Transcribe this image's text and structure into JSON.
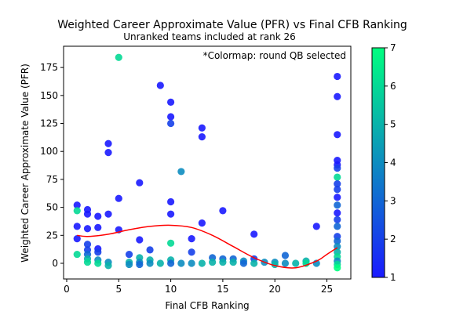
{
  "chart_data": {
    "type": "scatter",
    "title": "Weighted Career Approximate Value (PFR) vs Final CFB Ranking",
    "subtitle": "Unranked teams included at rank 26",
    "annotation": "*Colormap: round QB selected",
    "xlabel": "Final CFB Ranking",
    "ylabel": "Weighted Career Approximate Value (PFR)",
    "xlim": [
      -0.3,
      27.3
    ],
    "ylim": [
      -14,
      194
    ],
    "xticks": [
      0,
      5,
      10,
      15,
      20,
      25
    ],
    "yticks": [
      0,
      25,
      50,
      75,
      100,
      125,
      150,
      175
    ],
    "grid": false,
    "colormap": {
      "name": "winter",
      "range": [
        1,
        7
      ],
      "ticks": [
        1,
        2,
        3,
        4,
        5,
        6,
        7
      ],
      "low_color": "#1a1aff",
      "high_color": "#00ff80"
    },
    "points": [
      {
        "x": 1,
        "y": 52,
        "c": 1
      },
      {
        "x": 1,
        "y": 47,
        "c": 6
      },
      {
        "x": 1,
        "y": 33,
        "c": 1
      },
      {
        "x": 1,
        "y": 22,
        "c": 1
      },
      {
        "x": 1,
        "y": 8,
        "c": 6
      },
      {
        "x": 2,
        "y": 48,
        "c": 1
      },
      {
        "x": 2,
        "y": 44,
        "c": 1
      },
      {
        "x": 2,
        "y": 31,
        "c": 1
      },
      {
        "x": 2,
        "y": 17,
        "c": 2
      },
      {
        "x": 2,
        "y": 12,
        "c": 2
      },
      {
        "x": 2,
        "y": 8,
        "c": 3
      },
      {
        "x": 2,
        "y": 4,
        "c": 5
      },
      {
        "x": 2,
        "y": 1,
        "c": 6
      },
      {
        "x": 3,
        "y": 42,
        "c": 1
      },
      {
        "x": 3,
        "y": 32,
        "c": 1
      },
      {
        "x": 3,
        "y": 13,
        "c": 1
      },
      {
        "x": 3,
        "y": 10,
        "c": 2
      },
      {
        "x": 3,
        "y": 3,
        "c": 4
      },
      {
        "x": 3,
        "y": 0,
        "c": 6
      },
      {
        "x": 4,
        "y": 107,
        "c": 1
      },
      {
        "x": 4,
        "y": 99,
        "c": 1
      },
      {
        "x": 4,
        "y": 44,
        "c": 1
      },
      {
        "x": 4,
        "y": 1,
        "c": 4
      },
      {
        "x": 4,
        "y": -2,
        "c": 5
      },
      {
        "x": 5,
        "y": 184,
        "c": 6
      },
      {
        "x": 5,
        "y": 58,
        "c": 1
      },
      {
        "x": 5,
        "y": 30,
        "c": 1
      },
      {
        "x": 6,
        "y": 8,
        "c": 2
      },
      {
        "x": 6,
        "y": 1,
        "c": 5
      },
      {
        "x": 6,
        "y": -1,
        "c": 4
      },
      {
        "x": 7,
        "y": 72,
        "c": 1
      },
      {
        "x": 7,
        "y": 21,
        "c": 1
      },
      {
        "x": 7,
        "y": 5,
        "c": 5
      },
      {
        "x": 7,
        "y": 1,
        "c": 4
      },
      {
        "x": 7,
        "y": -1,
        "c": 3
      },
      {
        "x": 8,
        "y": 12,
        "c": 2
      },
      {
        "x": 8,
        "y": 3,
        "c": 5
      },
      {
        "x": 8,
        "y": 0,
        "c": 4
      },
      {
        "x": 9,
        "y": 159,
        "c": 1
      },
      {
        "x": 9,
        "y": 0,
        "c": 5
      },
      {
        "x": 10,
        "y": 144,
        "c": 1
      },
      {
        "x": 10,
        "y": 131,
        "c": 1
      },
      {
        "x": 10,
        "y": 125,
        "c": 2
      },
      {
        "x": 10,
        "y": 55,
        "c": 1
      },
      {
        "x": 10,
        "y": 44,
        "c": 1
      },
      {
        "x": 10,
        "y": 18,
        "c": 6
      },
      {
        "x": 10,
        "y": 3,
        "c": 5
      },
      {
        "x": 10,
        "y": 0,
        "c": 3
      },
      {
        "x": 11,
        "y": 82,
        "c": 4
      },
      {
        "x": 11,
        "y": 0,
        "c": 4
      },
      {
        "x": 12,
        "y": 22,
        "c": 1
      },
      {
        "x": 12,
        "y": 10,
        "c": 2
      },
      {
        "x": 12,
        "y": 0,
        "c": 4
      },
      {
        "x": 13,
        "y": 121,
        "c": 1
      },
      {
        "x": 13,
        "y": 113,
        "c": 1
      },
      {
        "x": 13,
        "y": 36,
        "c": 1
      },
      {
        "x": 13,
        "y": 0,
        "c": 5
      },
      {
        "x": 14,
        "y": 5,
        "c": 3
      },
      {
        "x": 14,
        "y": 1,
        "c": 5
      },
      {
        "x": 15,
        "y": 47,
        "c": 1
      },
      {
        "x": 15,
        "y": 4,
        "c": 3
      },
      {
        "x": 15,
        "y": 1,
        "c": 5
      },
      {
        "x": 16,
        "y": 4,
        "c": 3
      },
      {
        "x": 16,
        "y": 1,
        "c": 5
      },
      {
        "x": 17,
        "y": 2,
        "c": 4
      },
      {
        "x": 17,
        "y": 0,
        "c": 3
      },
      {
        "x": 18,
        "y": 26,
        "c": 1
      },
      {
        "x": 18,
        "y": 4,
        "c": 2
      },
      {
        "x": 18,
        "y": 0,
        "c": 5
      },
      {
        "x": 19,
        "y": 1,
        "c": 4
      },
      {
        "x": 20,
        "y": 1,
        "c": 4
      },
      {
        "x": 20,
        "y": -1,
        "c": 5
      },
      {
        "x": 21,
        "y": 7,
        "c": 3
      },
      {
        "x": 21,
        "y": 0,
        "c": 4
      },
      {
        "x": 22,
        "y": 0,
        "c": 5
      },
      {
        "x": 23,
        "y": 2,
        "c": 5
      },
      {
        "x": 23,
        "y": 0,
        "c": 6
      },
      {
        "x": 24,
        "y": 33,
        "c": 1
      },
      {
        "x": 24,
        "y": 0,
        "c": 4
      },
      {
        "x": 26,
        "y": 167,
        "c": 1
      },
      {
        "x": 26,
        "y": 149,
        "c": 1
      },
      {
        "x": 26,
        "y": 115,
        "c": 1
      },
      {
        "x": 26,
        "y": 92,
        "c": 1
      },
      {
        "x": 26,
        "y": 88,
        "c": 1
      },
      {
        "x": 26,
        "y": 85,
        "c": 2
      },
      {
        "x": 26,
        "y": 77,
        "c": 6
      },
      {
        "x": 26,
        "y": 71,
        "c": 2
      },
      {
        "x": 26,
        "y": 66,
        "c": 2
      },
      {
        "x": 26,
        "y": 59,
        "c": 1
      },
      {
        "x": 26,
        "y": 52,
        "c": 3
      },
      {
        "x": 26,
        "y": 45,
        "c": 1
      },
      {
        "x": 26,
        "y": 39,
        "c": 2
      },
      {
        "x": 26,
        "y": 33,
        "c": 3
      },
      {
        "x": 26,
        "y": 24,
        "c": 2
      },
      {
        "x": 26,
        "y": 20,
        "c": 3
      },
      {
        "x": 26,
        "y": 15,
        "c": 4
      },
      {
        "x": 26,
        "y": 10,
        "c": 5
      },
      {
        "x": 26,
        "y": 6,
        "c": 6
      },
      {
        "x": 26,
        "y": 2,
        "c": 4
      },
      {
        "x": 26,
        "y": -1,
        "c": 6
      },
      {
        "x": 26,
        "y": -4,
        "c": 7
      }
    ],
    "trend_line": {
      "color": "#ff0000",
      "x": [
        1,
        2,
        4,
        6,
        8,
        10,
        12,
        14,
        16,
        18,
        20,
        22,
        24,
        25,
        26
      ],
      "y": [
        25,
        24,
        26,
        30,
        33,
        34,
        32,
        25,
        15,
        5,
        -2,
        -4,
        2,
        8,
        14
      ]
    }
  }
}
